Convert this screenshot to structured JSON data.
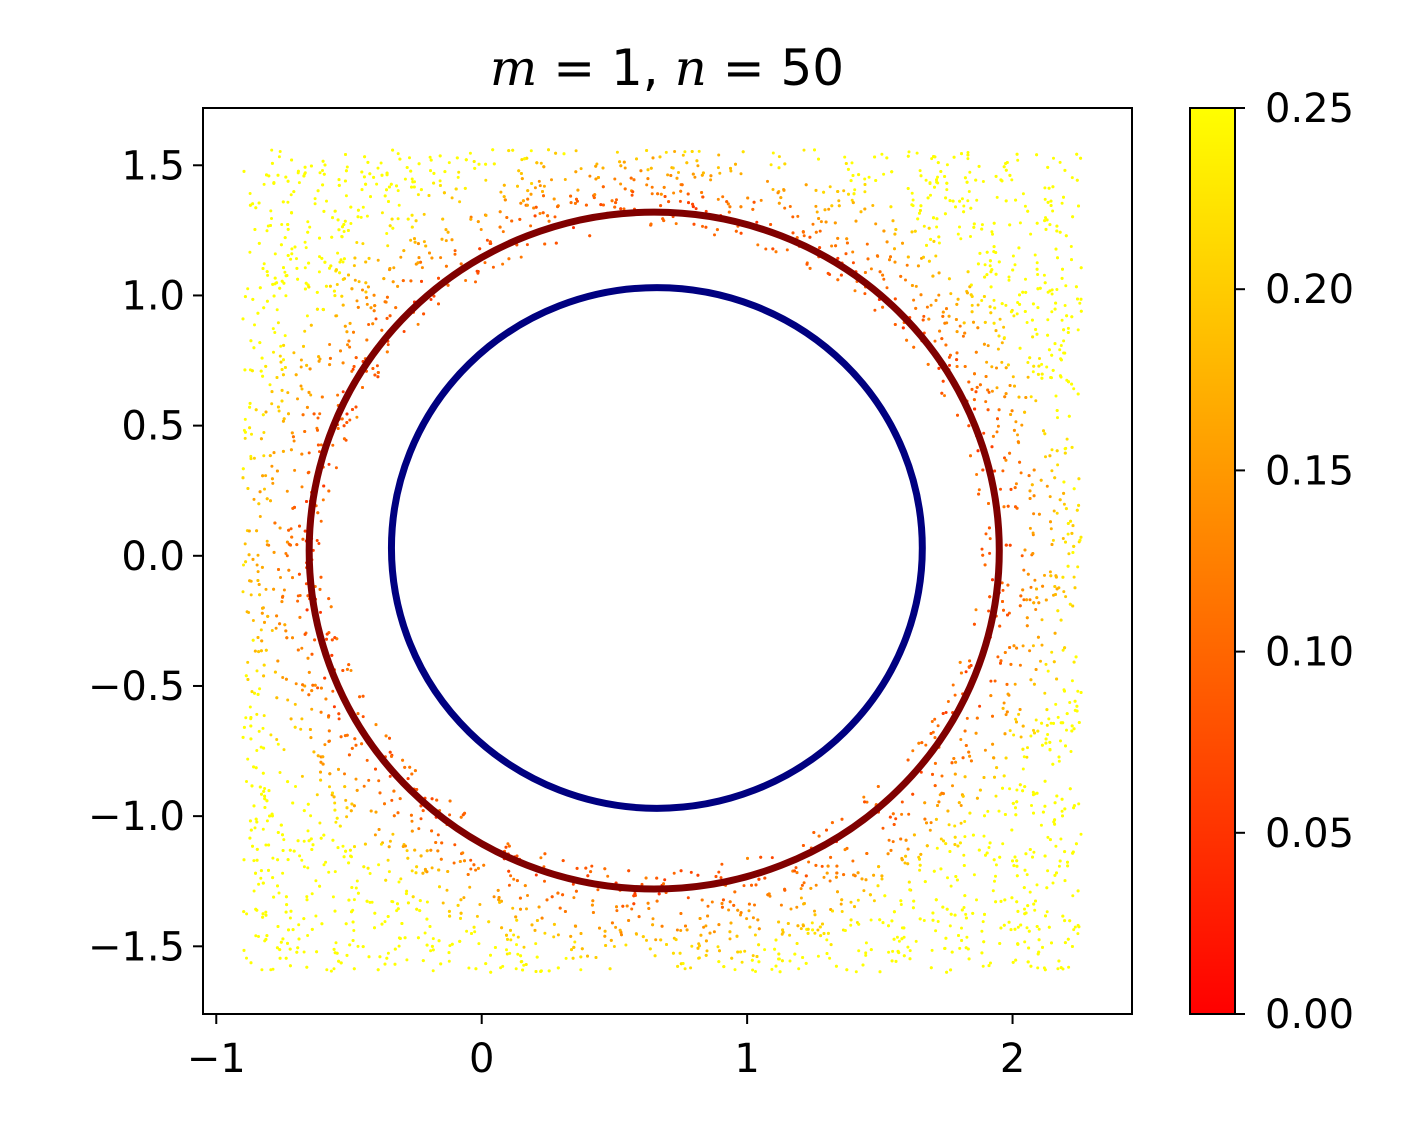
{
  "chart_data": {
    "type": "scatter",
    "title_parts": {
      "m_var": "m",
      "m_eq": " = 1, ",
      "n_var": "n",
      "n_eq": " = 50"
    },
    "xlabel": "",
    "ylabel": "",
    "xlim": [
      -1.05,
      2.45
    ],
    "ylim": [
      -1.76,
      1.72
    ],
    "xticks": [
      {
        "value": -1,
        "label": "−1"
      },
      {
        "value": 0,
        "label": "0"
      },
      {
        "value": 1,
        "label": "1"
      },
      {
        "value": 2,
        "label": "2"
      }
    ],
    "yticks": [
      {
        "value": 1.5,
        "label": "1.5"
      },
      {
        "value": 1.0,
        "label": "1.0"
      },
      {
        "value": 0.5,
        "label": "0.5"
      },
      {
        "value": 0.0,
        "label": "0.0"
      },
      {
        "value": -0.5,
        "label": "−0.5"
      },
      {
        "value": -1.0,
        "label": "−1.0"
      },
      {
        "value": -1.5,
        "label": "−1.5"
      }
    ],
    "grid": false,
    "scatter_region": {
      "x_range": [
        -0.9,
        2.26
      ],
      "y_range": [
        -1.6,
        1.56
      ],
      "excluded_circle": {
        "center": [
          0.65,
          0.02
        ],
        "radius": 1.23
      },
      "colormap": "autumn",
      "value_meaning": "distance from dark red circle"
    },
    "curves": [
      {
        "shape": "circle",
        "center": [
          0.65,
          0.02
        ],
        "radius": 1.3,
        "color": "#800000"
      },
      {
        "shape": "circle",
        "center": [
          0.66,
          0.03
        ],
        "radius": 1.0,
        "color": "#000080"
      }
    ],
    "colorbar": {
      "range": [
        0.0,
        0.25
      ],
      "colormap": "autumn",
      "ticks": [
        {
          "value": 0.0,
          "label": "0.00"
        },
        {
          "value": 0.05,
          "label": "0.05"
        },
        {
          "value": 0.1,
          "label": "0.10"
        },
        {
          "value": 0.15,
          "label": "0.15"
        },
        {
          "value": 0.2,
          "label": "0.20"
        },
        {
          "value": 0.25,
          "label": "0.25"
        }
      ]
    }
  }
}
